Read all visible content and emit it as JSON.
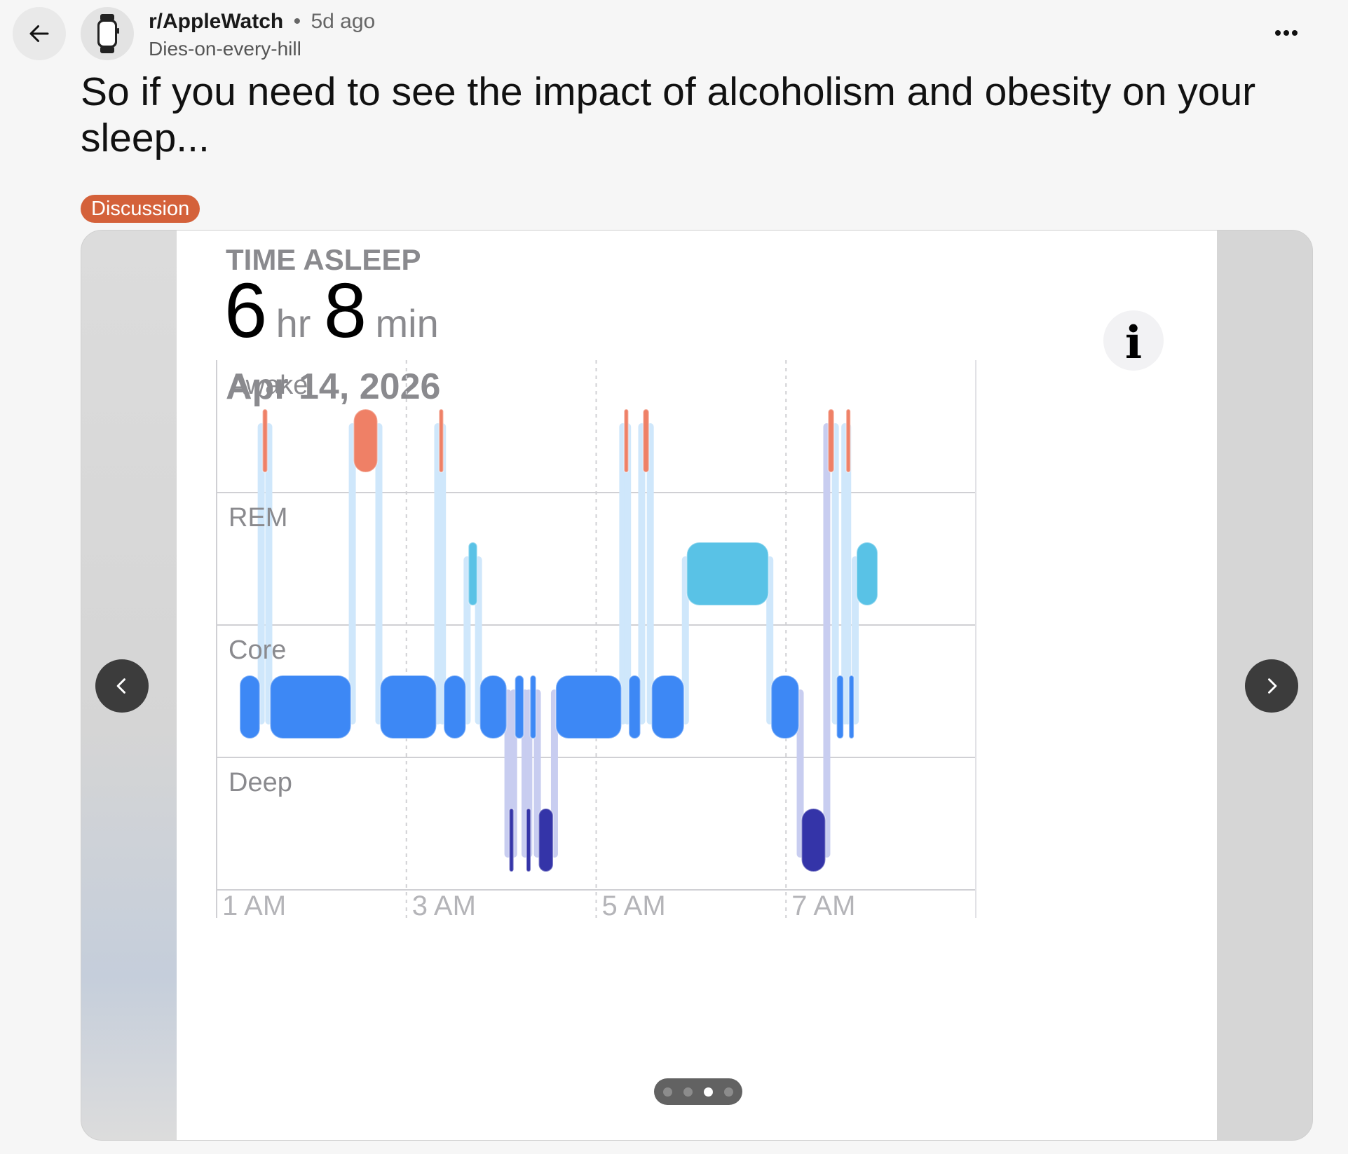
{
  "header": {
    "subreddit": "r/AppleWatch",
    "separator": "•",
    "time_ago": "5d ago",
    "author": "Dies-on-every-hill"
  },
  "post": {
    "title": "So if you need to see the impact of alcoholism and obesity on your sleep...",
    "flair": "Discussion",
    "flair_color": "#d4613a"
  },
  "icons": {
    "back": "arrow-left-icon",
    "avatar": "apple-watch-icon",
    "more": "more-horizontal-icon",
    "prev": "chevron-left-icon",
    "next": "chevron-right-icon",
    "info": "info-icon"
  },
  "gallery": {
    "slide_count": 4,
    "active_slide": 3
  },
  "screenshot": {
    "heading": "TIME ASLEEP",
    "hours_value": "6",
    "hours_unit": "hr",
    "minutes_value": "8",
    "minutes_unit": "min",
    "date": "Apr 14, 2026",
    "info_glyph": "i"
  },
  "chart_data": {
    "type": "sleep-stages",
    "title": "TIME ASLEEP",
    "stages": [
      "Awake",
      "REM",
      "Core",
      "Deep"
    ],
    "x_tick_labels": [
      "1 AM",
      "3 AM",
      "5 AM",
      "7 AM"
    ],
    "x_range_hours": [
      1,
      9
    ],
    "colors": {
      "Awake": "#ef8066",
      "REM": "#59c2e6",
      "Core": "#3d88f5",
      "Deep": "#3434a8"
    },
    "segments": [
      {
        "stage": "Core",
        "start": 1.23,
        "end": 1.47
      },
      {
        "stage": "Awake",
        "start": 1.47,
        "end": 1.55
      },
      {
        "stage": "Core",
        "start": 1.55,
        "end": 2.43
      },
      {
        "stage": "Awake",
        "start": 2.43,
        "end": 2.71
      },
      {
        "stage": "Core",
        "start": 2.71,
        "end": 3.33
      },
      {
        "stage": "Awake",
        "start": 3.33,
        "end": 3.38
      },
      {
        "stage": "Core",
        "start": 3.38,
        "end": 3.64
      },
      {
        "stage": "REM",
        "start": 3.64,
        "end": 3.76
      },
      {
        "stage": "Core",
        "start": 3.76,
        "end": 4.07
      },
      {
        "stage": "Deep",
        "start": 4.07,
        "end": 4.13
      },
      {
        "stage": "Core",
        "start": 4.13,
        "end": 4.25
      },
      {
        "stage": "Deep",
        "start": 4.25,
        "end": 4.29
      },
      {
        "stage": "Core",
        "start": 4.29,
        "end": 4.38
      },
      {
        "stage": "Deep",
        "start": 4.38,
        "end": 4.56
      },
      {
        "stage": "Core",
        "start": 4.56,
        "end": 5.28
      },
      {
        "stage": "Awake",
        "start": 5.28,
        "end": 5.33
      },
      {
        "stage": "Core",
        "start": 5.33,
        "end": 5.48
      },
      {
        "stage": "Awake",
        "start": 5.48,
        "end": 5.57
      },
      {
        "stage": "Core",
        "start": 5.57,
        "end": 5.94
      },
      {
        "stage": "REM",
        "start": 5.94,
        "end": 6.83
      },
      {
        "stage": "Core",
        "start": 6.83,
        "end": 7.15
      },
      {
        "stage": "Deep",
        "start": 7.15,
        "end": 7.43
      },
      {
        "stage": "Awake",
        "start": 7.43,
        "end": 7.52
      },
      {
        "stage": "Core",
        "start": 7.52,
        "end": 7.62
      },
      {
        "stage": "Awake",
        "start": 7.62,
        "end": 7.65
      },
      {
        "stage": "Core",
        "start": 7.65,
        "end": 7.73
      },
      {
        "stage": "REM",
        "start": 7.73,
        "end": 7.98
      }
    ]
  }
}
